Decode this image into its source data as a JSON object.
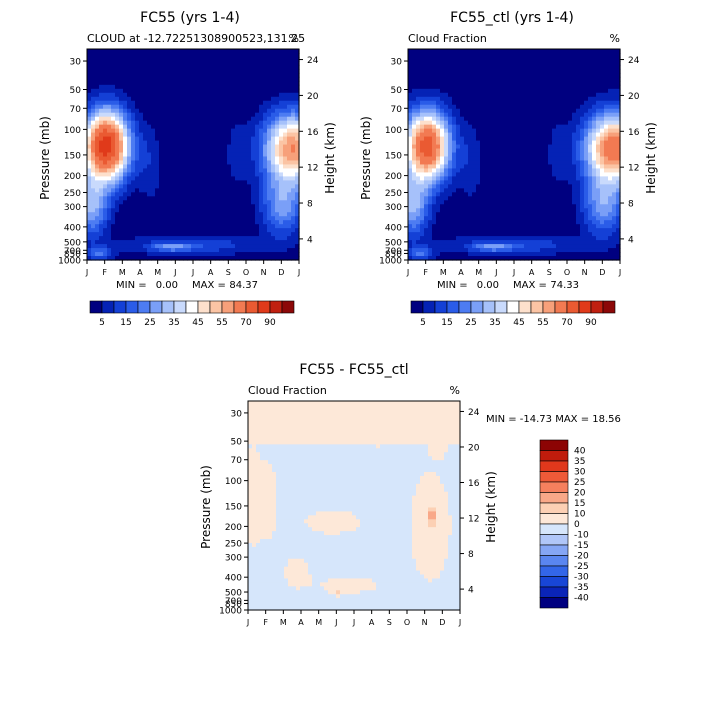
{
  "colors": {
    "cloud_scale": [
      "#000080",
      "#0522b5",
      "#1440d6",
      "#2a5ce8",
      "#4d7cf2",
      "#7a9ff7",
      "#a6c1fa",
      "#c9dafc",
      "#ffffff",
      "#fde0cc",
      "#fbc4a4",
      "#f7a07a",
      "#f27a52",
      "#ea5a32",
      "#e03a1a",
      "#c02010",
      "#8c0808"
    ],
    "diff_scale": [
      "#000080",
      "#0a24b8",
      "#1846d6",
      "#3366e8",
      "#5a86f0",
      "#85a6f5",
      "#b0c6f8",
      "#d6e6fb",
      "#fde8d8",
      "#fcd0b4",
      "#f9a888",
      "#f5805e",
      "#ee5a38",
      "#e0381c",
      "#c01c0c",
      "#8c0404"
    ]
  },
  "chart_data": [
    {
      "type": "heatmap",
      "title": "FC55 (yrs 1-4)",
      "subtitle_left": "CLOUD at -12.72251308900523,131.25",
      "subtitle_right": "%",
      "ylabel": "Pressure (mb)",
      "ylabel_right": "Height (km)",
      "x_ticks": [
        "J",
        "F",
        "M",
        "A",
        "M",
        "J",
        "J",
        "A",
        "S",
        "O",
        "N",
        "D",
        "J"
      ],
      "y_ticks": [
        "30",
        "50",
        "70",
        "100",
        "150",
        "200",
        "250",
        "300",
        "400",
        "500",
        "700",
        "850",
        "1000"
      ],
      "y_ticks_right": [
        "24",
        "20",
        "16",
        "12",
        "8",
        "4"
      ],
      "min_label": "MIN =",
      "min": "0.00",
      "max_label": "MAX =",
      "max": "84.37",
      "colorbar_labels": [
        "5",
        "15",
        "25",
        "35",
        "45",
        "55",
        "70",
        "90"
      ],
      "peaks": [
        {
          "month": 1.5,
          "pressure": 150,
          "value": 84.37
        },
        {
          "month": 11.8,
          "pressure": 180,
          "value": 60
        }
      ]
    },
    {
      "type": "heatmap",
      "title": "FC55_ctl (yrs 1-4)",
      "subtitle_left": "Cloud Fraction",
      "subtitle_right": "%",
      "ylabel": "Pressure (mb)",
      "ylabel_right": "Height (km)",
      "x_ticks": [
        "J",
        "F",
        "M",
        "A",
        "M",
        "J",
        "J",
        "A",
        "S",
        "O",
        "N",
        "D",
        "J"
      ],
      "y_ticks": [
        "30",
        "50",
        "70",
        "100",
        "150",
        "200",
        "250",
        "300",
        "400",
        "500",
        "700",
        "850",
        "1000"
      ],
      "y_ticks_right": [
        "24",
        "20",
        "16",
        "12",
        "8",
        "4"
      ],
      "min_label": "MIN =",
      "min": "0.00",
      "max_label": "MAX =",
      "max": "74.33",
      "colorbar_labels": [
        "5",
        "15",
        "25",
        "35",
        "45",
        "55",
        "70",
        "90"
      ],
      "peaks": [
        {
          "month": 1.3,
          "pressure": 150,
          "value": 74.33
        },
        {
          "month": 11.9,
          "pressure": 160,
          "value": 65
        }
      ]
    },
    {
      "type": "heatmap",
      "title": "FC55 - FC55_ctl",
      "subtitle_left": "Cloud Fraction",
      "subtitle_right": "%",
      "ylabel": "Pressure (mb)",
      "ylabel_right": "Height (km)",
      "x_ticks": [
        "J",
        "F",
        "M",
        "A",
        "M",
        "J",
        "J",
        "A",
        "S",
        "O",
        "N",
        "D",
        "J"
      ],
      "y_ticks": [
        "30",
        "50",
        "70",
        "100",
        "150",
        "200",
        "250",
        "300",
        "400",
        "500",
        "700",
        "850",
        "1000"
      ],
      "y_ticks_right": [
        "24",
        "20",
        "16",
        "12",
        "8",
        "4"
      ],
      "minmax_text": "MIN = -14.73 MAX =  18.56",
      "colorbar_labels": [
        "40",
        "35",
        "30",
        "25",
        "20",
        "15",
        "10",
        "0",
        "-10",
        "-15",
        "-20",
        "-25",
        "-30",
        "-35",
        "-40"
      ]
    }
  ]
}
